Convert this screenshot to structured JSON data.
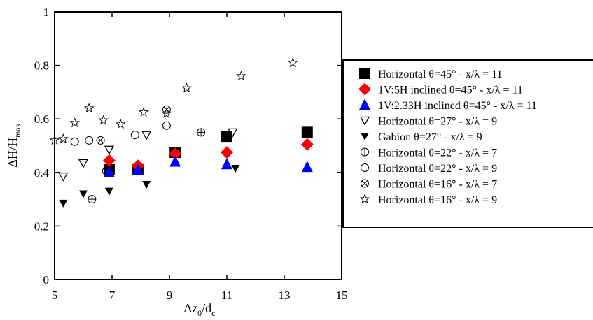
{
  "chart_data": {
    "type": "scatter",
    "title": "",
    "xlabel": {
      "main": "Δz",
      "sub1": "0",
      "mid": "/d",
      "sub2": "c"
    },
    "ylabel": {
      "main": "ΔH/H",
      "sub": "max"
    },
    "xlim": [
      5,
      15
    ],
    "ylim": [
      0,
      1
    ],
    "xticks": [
      5,
      7,
      9,
      11,
      13,
      15
    ],
    "yticks": [
      0,
      0.2,
      0.4,
      0.6,
      0.8,
      1
    ],
    "xtick_labels": [
      "5",
      "7",
      "9",
      "11",
      "13",
      "15"
    ],
    "ytick_labels": [
      "0",
      "0.2",
      "0.4",
      "0.6",
      "0.8",
      "1"
    ],
    "grid": false,
    "legend_position": "right, outside plot",
    "series": [
      {
        "name": "Horizontal θ=45° - x/λ = 11",
        "marker": "square-filled",
        "color": "#000000",
        "points": [
          [
            6.9,
            0.41
          ],
          [
            7.9,
            0.41
          ],
          [
            9.2,
            0.475
          ],
          [
            11.0,
            0.535
          ],
          [
            13.8,
            0.55
          ]
        ]
      },
      {
        "name": "1V:5H inclined θ=45° - x/λ = 11",
        "marker": "diamond-filled",
        "color": "#ff0000",
        "points": [
          [
            6.9,
            0.445
          ],
          [
            7.9,
            0.425
          ],
          [
            9.2,
            0.47
          ],
          [
            11.0,
            0.475
          ],
          [
            13.8,
            0.505
          ]
        ]
      },
      {
        "name": "1V:2.33H inclined θ=45° - x/λ = 11",
        "marker": "triangle-up-filled",
        "color": "#0000ff",
        "points": [
          [
            6.9,
            0.4
          ],
          [
            7.9,
            0.41
          ],
          [
            9.2,
            0.44
          ],
          [
            11.0,
            0.43
          ],
          [
            13.8,
            0.42
          ]
        ]
      },
      {
        "name": "Horizontal θ=27° - x/λ = 9",
        "marker": "triangle-down-open",
        "color": "#000000",
        "points": [
          [
            5.3,
            0.385
          ],
          [
            6.0,
            0.435
          ],
          [
            6.9,
            0.485
          ],
          [
            8.2,
            0.54
          ],
          [
            11.2,
            0.55
          ]
        ]
      },
      {
        "name": "Gabion θ=27° - x/λ = 9",
        "marker": "triangle-down-filled",
        "color": "#000000",
        "points": [
          [
            5.3,
            0.285
          ],
          [
            6.0,
            0.32
          ],
          [
            6.9,
            0.33
          ],
          [
            8.2,
            0.355
          ],
          [
            11.3,
            0.415
          ]
        ]
      },
      {
        "name": "Horizontal θ=22° - x/λ = 7",
        "marker": "circle-plus",
        "color": "#000000",
        "points": [
          [
            6.3,
            0.3
          ],
          [
            10.1,
            0.55
          ]
        ]
      },
      {
        "name": "Horizontal θ=22° - x/λ = 9",
        "marker": "circle-open",
        "color": "#000000",
        "points": [
          [
            5.7,
            0.515
          ],
          [
            6.2,
            0.52
          ],
          [
            6.8,
            0.405
          ],
          [
            7.8,
            0.54
          ],
          [
            8.9,
            0.575
          ]
        ]
      },
      {
        "name": "Horizontal θ=16° - x/λ = 7",
        "marker": "circle-x",
        "color": "#000000",
        "points": [
          [
            6.6,
            0.52
          ],
          [
            8.9,
            0.635
          ]
        ]
      },
      {
        "name": "Horizontal θ=16° - x/λ = 9",
        "marker": "star-open",
        "color": "#000000",
        "points": [
          [
            5.0,
            0.52
          ],
          [
            5.3,
            0.525
          ],
          [
            5.7,
            0.585
          ],
          [
            6.2,
            0.64
          ],
          [
            6.7,
            0.595
          ],
          [
            7.3,
            0.58
          ],
          [
            8.1,
            0.625
          ],
          [
            8.9,
            0.62
          ],
          [
            9.6,
            0.715
          ],
          [
            11.5,
            0.76
          ],
          [
            13.3,
            0.81
          ]
        ]
      }
    ]
  }
}
